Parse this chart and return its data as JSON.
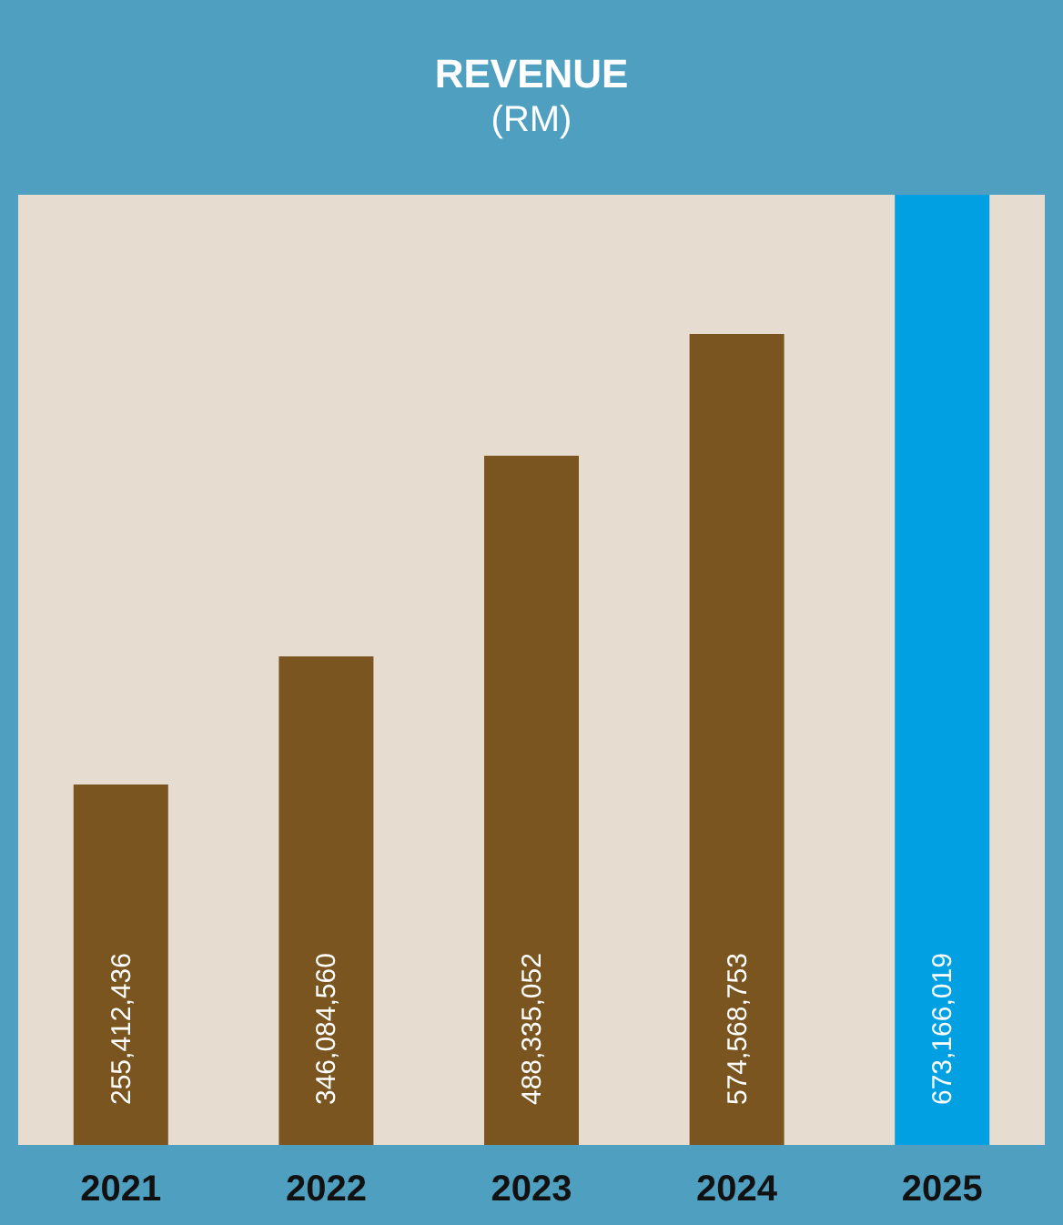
{
  "chart_data": {
    "type": "bar",
    "title": "REVENUE",
    "subtitle": "(RM)",
    "categories": [
      "2021",
      "2022",
      "2023",
      "2024",
      "2025"
    ],
    "values": [
      255412436,
      346084560,
      488335052,
      574568753,
      673166019
    ],
    "value_labels": [
      "255,412,436",
      "346,084,560",
      "488,335,052",
      "574,568,753",
      "673,166,019"
    ],
    "colors": [
      "#7a5520",
      "#7a5520",
      "#7a5520",
      "#7a5520",
      "#00a0e3"
    ],
    "grid": false
  }
}
